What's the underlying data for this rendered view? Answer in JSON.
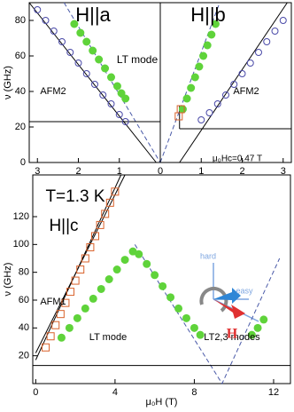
{
  "chart_data": [
    {
      "type": "scatter",
      "y_label": "ν (GHz)",
      "xlim": [
        -3.2,
        3.2
      ],
      "ylim": [
        0,
        90
      ],
      "xticks": [
        {
          "value": -3,
          "label": "3"
        },
        {
          "value": -2,
          "label": "2"
        },
        {
          "value": -1,
          "label": "1"
        },
        0,
        1,
        2,
        3
      ],
      "yticks": [
        0,
        20,
        40,
        60,
        80
      ],
      "annotations": [
        "H||a",
        "H||b",
        "LT mode",
        "AFM2",
        "AFM2",
        "μ₀Hc=0.47 T"
      ],
      "curves": [
        {
          "color": "#000000",
          "dash": false,
          "x": [
            -3.2,
            -0.1
          ],
          "y": [
            90,
            0
          ]
        },
        {
          "color": "#4a5aa8",
          "dash": true,
          "x": [
            -2.35,
            0
          ],
          "y": [
            90,
            0
          ]
        },
        {
          "color": "#4a5aa8",
          "dash": true,
          "x": [
            0,
            1.45
          ],
          "y": [
            0,
            90
          ]
        },
        {
          "color": "#000000",
          "dash": false,
          "x": [
            0.47,
            3.1
          ],
          "y": [
            0,
            90
          ]
        },
        {
          "color": "#000000",
          "dash": false,
          "x": [
            -3.2,
            0
          ],
          "y": [
            23,
            23
          ]
        },
        {
          "color": "#000000",
          "dash": false,
          "x": [
            0.47,
            3.2
          ],
          "y": [
            19,
            19
          ]
        },
        {
          "color": "#000000",
          "dash": false,
          "x": [
            0.47,
            0.47
          ],
          "y": [
            19,
            32
          ]
        },
        {
          "color": "#000000",
          "dash": false,
          "x": [
            0,
            0
          ],
          "y": [
            0,
            90
          ]
        }
      ],
      "series": [
        {
          "marker": "circle-open",
          "color": "#4a4aa8",
          "x": [
            -3.0,
            -2.8,
            -2.6,
            -2.4,
            -2.2,
            -2.0,
            -1.8,
            -1.6,
            -1.4,
            -1.2,
            -1.0,
            -0.85
          ],
          "y": [
            86,
            80,
            74,
            68,
            62,
            56,
            50,
            44,
            38,
            33,
            27,
            23
          ]
        },
        {
          "marker": "dot",
          "color": "#5fd33a",
          "x": [
            -2.1,
            -1.95,
            -1.8,
            -1.65,
            -1.5,
            -1.35,
            -1.2,
            -1.05,
            -0.95,
            -0.85
          ],
          "y": [
            78,
            73,
            68,
            63,
            58,
            53,
            48,
            43,
            39,
            36
          ]
        },
        {
          "marker": "dot",
          "color": "#5fd33a",
          "x": [
            0.55,
            0.65,
            0.75,
            0.85,
            0.95,
            1.05,
            1.15,
            1.25,
            1.35
          ],
          "y": [
            30,
            36,
            42,
            48,
            54,
            60,
            66,
            72,
            78
          ]
        },
        {
          "marker": "circle-open",
          "color": "#4a4aa8",
          "x": [
            1.0,
            1.2,
            1.4,
            1.6,
            1.8,
            2.0,
            2.2,
            2.4,
            2.6,
            2.8,
            3.0
          ],
          "y": [
            24,
            28,
            33,
            38,
            44,
            50,
            56,
            62,
            68,
            74,
            80
          ]
        },
        {
          "marker": "square-open",
          "color": "#d9622b",
          "x": [
            0.45,
            0.5
          ],
          "y": [
            26,
            30
          ]
        }
      ]
    },
    {
      "type": "scatter",
      "y_label": "ν (GHz)",
      "x_label": "μ₀H (T)",
      "xlim": [
        -0.15,
        12.85
      ],
      "ylim": [
        0,
        150
      ],
      "xticks": [
        0,
        4,
        8,
        12
      ],
      "yticks": [
        20,
        40,
        60,
        80,
        100,
        120
      ],
      "annotations": [
        "T=1.3 K",
        "H||c",
        "AFM1",
        "LT mode",
        "LT2,3 modes",
        "hard",
        "easy",
        "H"
      ],
      "curves": [
        {
          "color": "#000000",
          "dash": false,
          "x": [
            0,
            4.5
          ],
          "y": [
            22,
            150
          ]
        },
        {
          "color": "#000000",
          "dash": false,
          "x": [
            0,
            4.3
          ],
          "y": [
            17,
            150
          ]
        },
        {
          "color": "#4a5aa8",
          "dash": true,
          "x": [
            5.0,
            9.4,
            12.3
          ],
          "y": [
            100,
            0,
            90
          ]
        },
        {
          "color": "#000000",
          "dash": false,
          "x": [
            -0.15,
            12.85
          ],
          "y": [
            13,
            13
          ]
        }
      ],
      "series": [
        {
          "marker": "square-open",
          "color": "#d9622b",
          "x": [
            0.5,
            0.75,
            1,
            1.25,
            1.5,
            1.75,
            2,
            2.25,
            2.5,
            2.75,
            3,
            3.25,
            3.5,
            3.75,
            4
          ],
          "y": [
            26,
            34,
            42,
            50,
            58,
            66,
            74,
            82,
            90,
            98,
            106,
            114,
            122,
            130,
            138
          ]
        },
        {
          "marker": "dot",
          "color": "#5fd33a",
          "x": [
            1.3,
            1.7,
            2.1,
            2.5,
            2.9,
            3.3,
            3.7,
            4.1,
            4.5,
            4.9,
            5.2,
            5.6,
            6.0,
            6.4,
            6.8,
            7.2,
            7.6,
            8.0,
            8.3,
            10.9,
            11.2,
            11.5
          ],
          "y": [
            33,
            40,
            47,
            54,
            61,
            68,
            75,
            82,
            89,
            95,
            93,
            86,
            78,
            70,
            62,
            54,
            47,
            40,
            35,
            35,
            40,
            46
          ]
        }
      ]
    }
  ]
}
